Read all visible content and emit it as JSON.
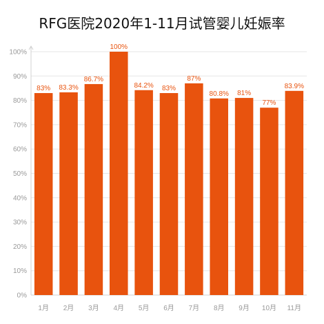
{
  "chart_data": {
    "type": "bar",
    "title": "RFG医院2020年1-11月试管婴儿妊娠率",
    "categories": [
      "1月",
      "2月",
      "3月",
      "4月",
      "5月",
      "6月",
      "7月",
      "8月",
      "9月",
      "10月",
      "11月"
    ],
    "values": [
      83,
      83.3,
      86.7,
      100,
      84.2,
      83,
      87,
      80.8,
      81,
      77,
      83.9
    ],
    "data_labels": [
      "83%",
      "83.3%",
      "86.7%",
      "100%",
      "84.2%",
      "83%",
      "87%",
      "80.8%",
      "81%",
      "77%",
      "83.9%"
    ],
    "ylim": [
      0,
      100
    ],
    "yticks": [
      "0%",
      "10%",
      "20%",
      "30%",
      "40%",
      "50%",
      "60%",
      "70%",
      "80%",
      "90%",
      "100%"
    ],
    "grid": true,
    "bar_color": "#e8530e",
    "label_color": "#e8530e"
  }
}
